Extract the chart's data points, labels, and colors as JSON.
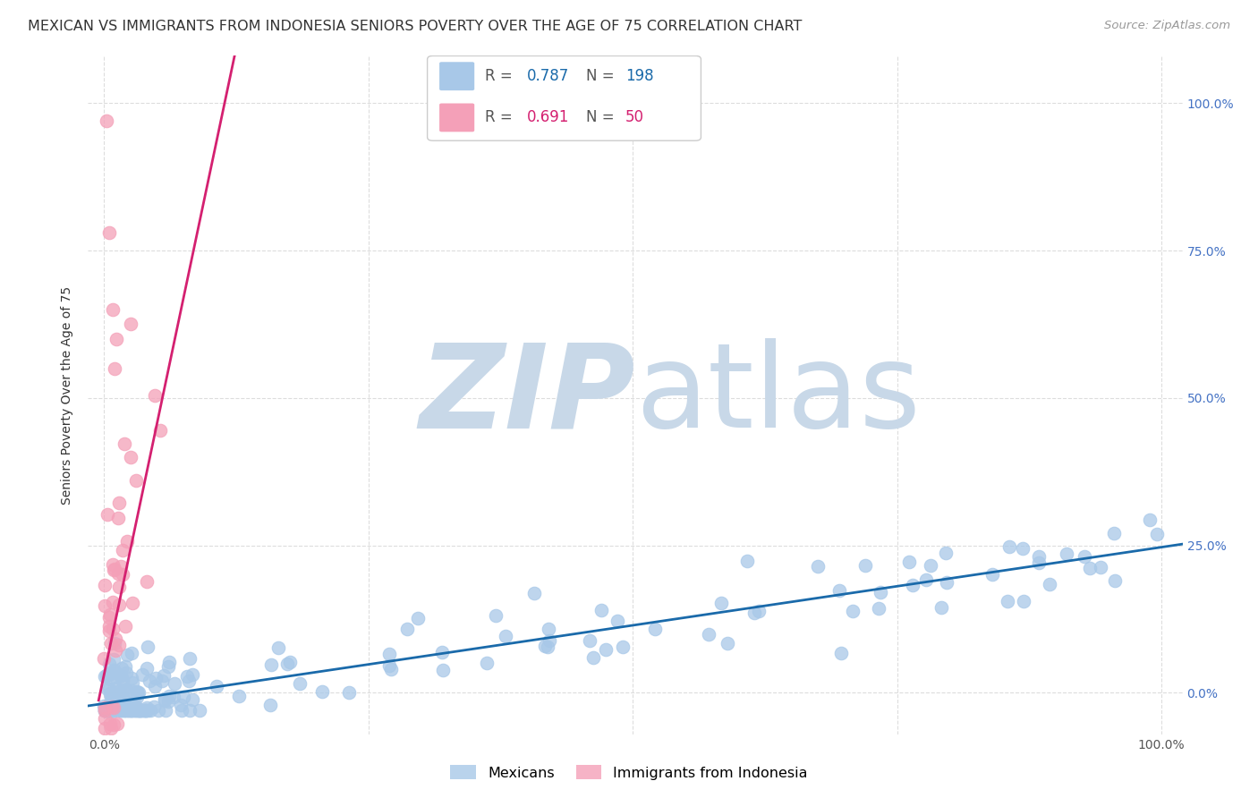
{
  "title": "MEXICAN VS IMMIGRANTS FROM INDONESIA SENIORS POVERTY OVER THE AGE OF 75 CORRELATION CHART",
  "source": "Source: ZipAtlas.com",
  "ylabel": "Seniors Poverty Over the Age of 75",
  "blue_color": "#a8c8e8",
  "pink_color": "#f4a0b8",
  "blue_line_color": "#1a6aaa",
  "pink_line_color": "#d42070",
  "watermark_zip": "ZIP",
  "watermark_atlas": "atlas",
  "watermark_color": "#c8d8e8",
  "background_color": "#ffffff",
  "grid_color": "#dddddd",
  "title_fontsize": 11.5,
  "source_fontsize": 9.5,
  "axis_label_fontsize": 10,
  "tick_fontsize": 10,
  "right_tick_color": "#4472c4",
  "blue_R": "0.787",
  "blue_N": "198",
  "pink_R": "0.691",
  "pink_N": "50",
  "blue_slope": 0.265,
  "blue_intercept": -0.018,
  "pink_slope": 8.5,
  "pink_intercept": 0.03,
  "legend_label_color": "#555555",
  "legend_value_color_blue": "#1a6aaa",
  "legend_value_color_pink": "#d42070"
}
